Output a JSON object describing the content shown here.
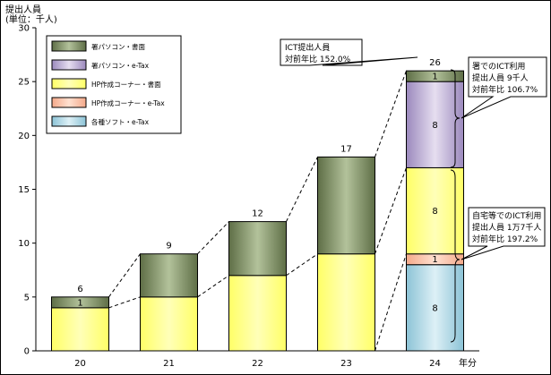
{
  "chart_data": {
    "type": "bar",
    "stacked": true,
    "ylabel": "提出人員",
    "ylabel_unit": "(単位：千人)",
    "xlabel": "年分",
    "categories": [
      "20",
      "21",
      "22",
      "23",
      "24"
    ],
    "ylim": [
      0,
      30
    ],
    "yticks": [
      0,
      5,
      10,
      15,
      20,
      25,
      30
    ],
    "series": [
      {
        "name": "各種ソフト・e-Tax",
        "color": "#A9D3E0",
        "values": [
          0,
          0,
          0,
          0,
          8
        ]
      },
      {
        "name": "HP作成コーナー・e-Tax",
        "color": "#F7BFA0",
        "values": [
          0,
          0,
          0,
          0,
          1
        ]
      },
      {
        "name": "HP作成コーナー・書面",
        "color": "#FFFF66",
        "values": [
          4,
          5,
          7,
          9,
          8
        ]
      },
      {
        "name": "署パソコン・e-Tax",
        "color": "#C8B8DC",
        "values": [
          0,
          0,
          0,
          0,
          8
        ]
      },
      {
        "name": "署パソコン・書面",
        "color": "#8A9A6C",
        "values": [
          1,
          4,
          5,
          9,
          1
        ]
      }
    ],
    "segment_labels": [
      [
        "4",
        "",
        "",
        "",
        "1"
      ],
      [
        "5",
        "4",
        "",
        "",
        ""
      ],
      [
        "7",
        "5",
        "",
        "",
        ""
      ],
      [
        "9",
        "9",
        "",
        "",
        ""
      ],
      [
        "8",
        "1",
        "8",
        "8",
        "1"
      ]
    ],
    "totals": [
      "6",
      "9",
      "12",
      "17",
      "26"
    ],
    "legend_position": "top-left",
    "grid": false,
    "annotations": [
      {
        "lines": [
          "ICT提出人員",
          "対前年比 152.0%"
        ]
      },
      {
        "lines": [
          "署でのICT利用",
          "提出人員 9千人",
          "対前年比 106.7%"
        ]
      },
      {
        "lines": [
          "自宅等でのICT利用",
          "提出人員 1万7千人",
          "対前年比 197.2%"
        ]
      }
    ]
  }
}
